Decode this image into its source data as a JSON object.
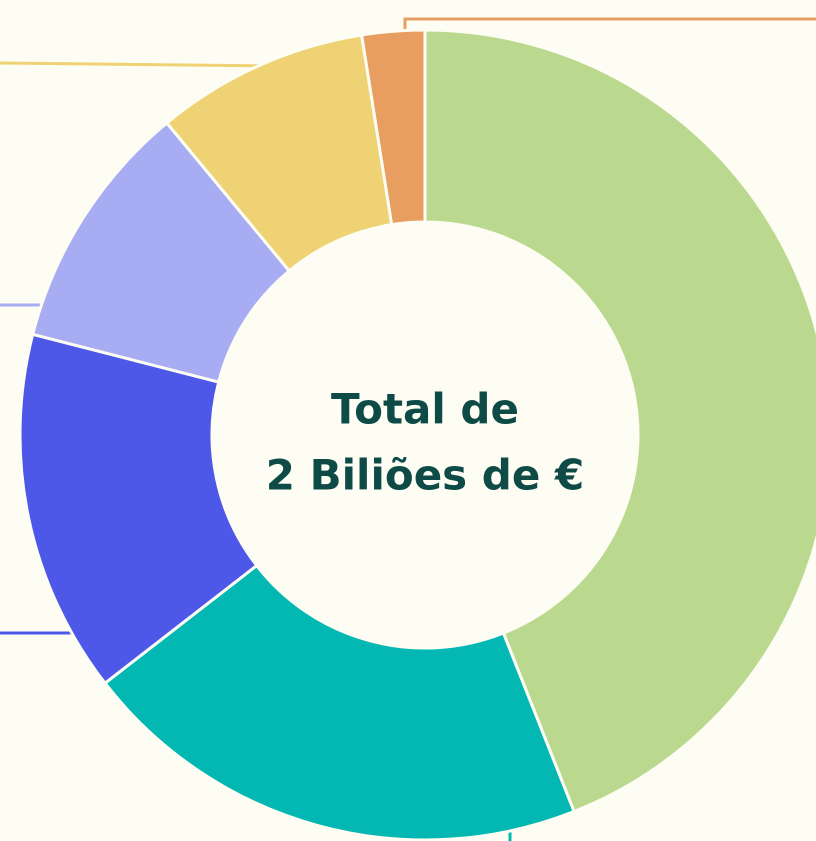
{
  "chart_data": {
    "type": "donut",
    "values": [
      44,
      20.5,
      14.5,
      10,
      8.5,
      2.5
    ],
    "colors": [
      "#bbd88f",
      "#03b8b2",
      "#4e58e8",
      "#a8acf2",
      "#efd273",
      "#e79e60"
    ],
    "center_text": [
      "Total de",
      "2 Biliões de €"
    ]
  }
}
